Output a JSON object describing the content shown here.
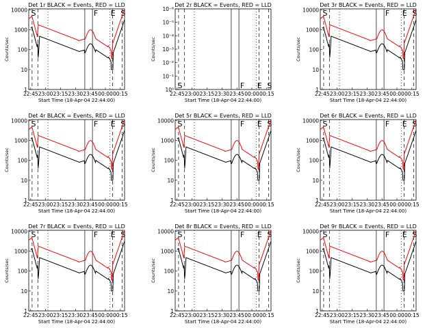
{
  "window": {
    "title": ""
  },
  "common": {
    "ylabel": "Counts/sec",
    "xlabel": "Start Time (18-Apr-04 22:44:00)",
    "x_ticks": [
      "22:45",
      "23:00",
      "23:15",
      "23:30",
      "23:45",
      "00:00",
      "00:15"
    ],
    "y_ticks": [
      "1",
      "10",
      "100",
      "1000",
      "10000"
    ],
    "y_ticks_2r": [
      "10⁰",
      "10⁻¹",
      "10⁻²",
      "10⁻³",
      "10⁻⁴",
      "10⁻⁵",
      "10⁻⁶"
    ],
    "markers": [
      "S",
      "F",
      "E",
      "S"
    ],
    "colors": {
      "events": "#000000",
      "lld": "#ff0000"
    }
  },
  "chart_data": [
    {
      "type": "line",
      "title": "Det 1r BLACK = Events, RED = LLD",
      "xlabel": "Start Time (18-Apr-04 22:44:00)",
      "ylabel": "Counts/sec",
      "ylim": [
        1,
        10000
      ],
      "y_scale": "log",
      "has_data": true,
      "series": [
        {
          "name": "Events",
          "color": "#000000"
        },
        {
          "name": "LLD",
          "color": "#ff0000"
        }
      ]
    },
    {
      "type": "line",
      "title": "Det 2r BLACK = Events, RED = LLD",
      "xlabel": "Start Time (18-Apr-04 22:44:00)",
      "ylabel": "Counts/sec",
      "ylim": [
        1e-06,
        1
      ],
      "y_scale": "log",
      "has_data": false,
      "series": []
    },
    {
      "type": "line",
      "title": "Det 3r BLACK = Events, RED = LLD",
      "xlabel": "Start Time (18-Apr-04 22:44:00)",
      "ylabel": "Counts/sec",
      "ylim": [
        1,
        10000
      ],
      "y_scale": "log",
      "has_data": true,
      "series": [
        {
          "name": "Events",
          "color": "#000000"
        },
        {
          "name": "LLD",
          "color": "#ff0000"
        }
      ]
    },
    {
      "type": "line",
      "title": "Det 4r BLACK = Events, RED = LLD",
      "xlabel": "Start Time (18-Apr-04 22:44:00)",
      "ylabel": "Counts/sec",
      "ylim": [
        1,
        10000
      ],
      "y_scale": "log",
      "has_data": true,
      "series": [
        {
          "name": "Events",
          "color": "#000000"
        },
        {
          "name": "LLD",
          "color": "#ff0000"
        }
      ]
    },
    {
      "type": "line",
      "title": "Det 5r BLACK = Events, RED = LLD",
      "xlabel": "Start Time (18-Apr-04 22:44:00)",
      "ylabel": "Counts/sec",
      "ylim": [
        1,
        10000
      ],
      "y_scale": "log",
      "has_data": true,
      "series": [
        {
          "name": "Events",
          "color": "#000000"
        },
        {
          "name": "LLD",
          "color": "#ff0000"
        }
      ]
    },
    {
      "type": "line",
      "title": "Det 6r BLACK = Events, RED = LLD",
      "xlabel": "Start Time (18-Apr-04 22:44:00)",
      "ylabel": "Counts/sec",
      "ylim": [
        1,
        10000
      ],
      "y_scale": "log",
      "has_data": true,
      "series": [
        {
          "name": "Events",
          "color": "#000000"
        },
        {
          "name": "LLD",
          "color": "#ff0000"
        }
      ]
    },
    {
      "type": "line",
      "title": "Det 7r BLACK = Events, RED = LLD",
      "xlabel": "Start Time (18-Apr-04 22:44:00)",
      "ylabel": "Counts/sec",
      "ylim": [
        1,
        10000
      ],
      "y_scale": "log",
      "has_data": true,
      "series": [
        {
          "name": "Events",
          "color": "#000000"
        },
        {
          "name": "LLD",
          "color": "#ff0000"
        }
      ]
    },
    {
      "type": "line",
      "title": "Det 8r BLACK = Events, RED = LLD",
      "xlabel": "Start Time (18-Apr-04 22:44:00)",
      "ylabel": "Counts/sec",
      "ylim": [
        1,
        10000
      ],
      "y_scale": "log",
      "has_data": true,
      "series": [
        {
          "name": "Events",
          "color": "#000000"
        },
        {
          "name": "LLD",
          "color": "#ff0000"
        }
      ]
    },
    {
      "type": "line",
      "title": "Det 9r BLACK = Events, RED = LLD",
      "xlabel": "Start Time (18-Apr-04 22:44:00)",
      "ylabel": "Counts/sec",
      "ylim": [
        1,
        10000
      ],
      "y_scale": "log",
      "has_data": true,
      "series": [
        {
          "name": "Events",
          "color": "#000000"
        },
        {
          "name": "LLD",
          "color": "#ff0000"
        }
      ]
    }
  ]
}
